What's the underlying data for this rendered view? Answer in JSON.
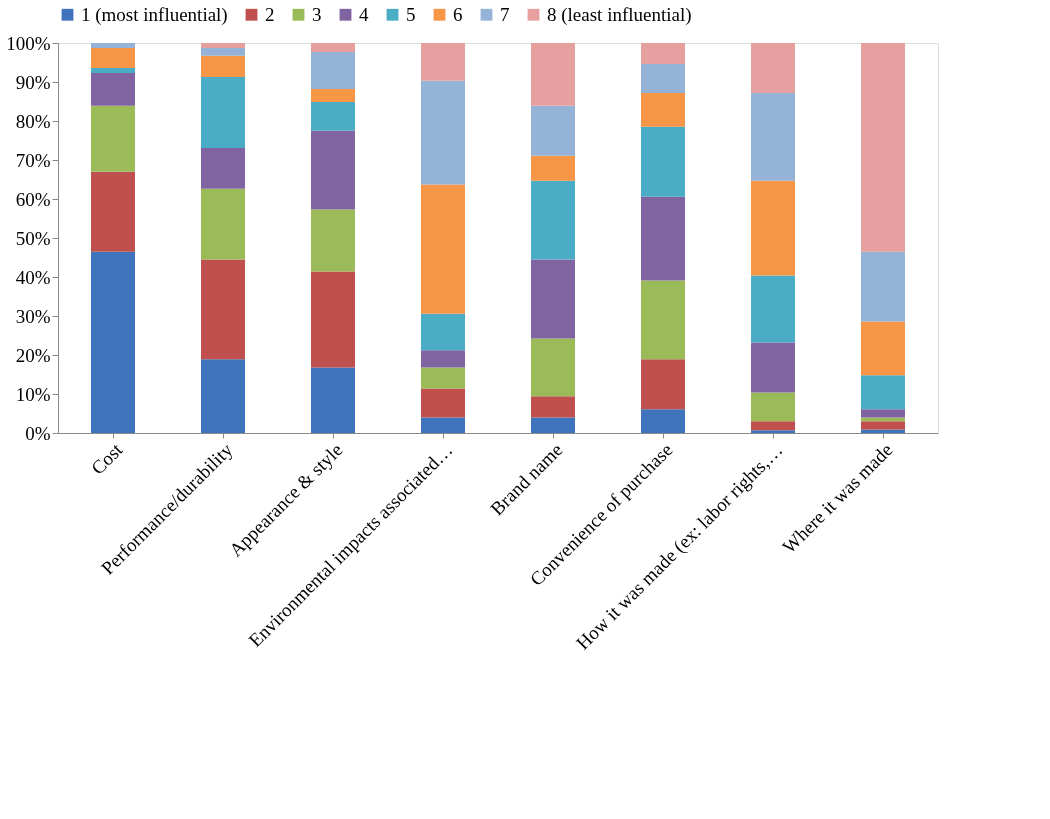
{
  "chart_data": {
    "type": "bar",
    "stacked": true,
    "legend": "top",
    "grid": false,
    "categories": [
      "Cost",
      "Performance/durability",
      "Appearance & style",
      "Environmental impacts associated…",
      "Brand name",
      "Convenience of purchase",
      "How it was made (ex: labor rights,…",
      "Where it was made"
    ],
    "ylim": [
      0,
      100
    ],
    "yticks": [
      {
        "value": 0,
        "label": "0%"
      },
      {
        "value": 10,
        "label": "10%"
      },
      {
        "value": 20,
        "label": "20%"
      },
      {
        "value": 30,
        "label": "30%"
      },
      {
        "value": 40,
        "label": "40%"
      },
      {
        "value": 50,
        "label": "50%"
      },
      {
        "value": 60,
        "label": "60%"
      },
      {
        "value": 70,
        "label": "70%"
      },
      {
        "value": 80,
        "label": "80%"
      },
      {
        "value": 90,
        "label": "90%"
      },
      {
        "value": 100,
        "label": "100%"
      }
    ],
    "series": [
      {
        "name": "1 (most influential)",
        "color": "#3f73bb",
        "values": [
          46.5,
          18.9,
          16.8,
          4.0,
          4.0,
          6.1,
          0.7,
          0.9
        ]
      },
      {
        "name": "2",
        "color": "#c0504d",
        "values": [
          20.5,
          25.6,
          24.6,
          7.4,
          5.4,
          12.8,
          2.3,
          2.1
        ]
      },
      {
        "name": "3",
        "color": "#9bbb59",
        "values": [
          16.9,
          18.1,
          15.9,
          5.4,
          14.8,
          20.2,
          7.4,
          1.0
        ]
      },
      {
        "name": "4",
        "color": "#8064a2",
        "values": [
          8.4,
          10.5,
          20.2,
          4.4,
          20.3,
          21.5,
          12.8,
          2.1
        ]
      },
      {
        "name": "5",
        "color": "#4bacc6",
        "values": [
          1.3,
          18.2,
          7.4,
          9.4,
          20.2,
          17.9,
          17.2,
          8.7
        ]
      },
      {
        "name": "6",
        "color": "#f79646",
        "values": [
          5.1,
          5.4,
          3.3,
          33.1,
          6.4,
          8.7,
          24.3,
          13.8
        ]
      },
      {
        "name": "7",
        "color": "#95b3d7",
        "values": [
          1.3,
          2.0,
          9.5,
          26.6,
          12.8,
          7.4,
          22.5,
          17.9
        ]
      },
      {
        "name": "8 (least influential)",
        "color": "#e6a0a0",
        "values": [
          0,
          1.3,
          2.3,
          9.7,
          16.1,
          5.4,
          12.8,
          53.5
        ]
      }
    ]
  }
}
